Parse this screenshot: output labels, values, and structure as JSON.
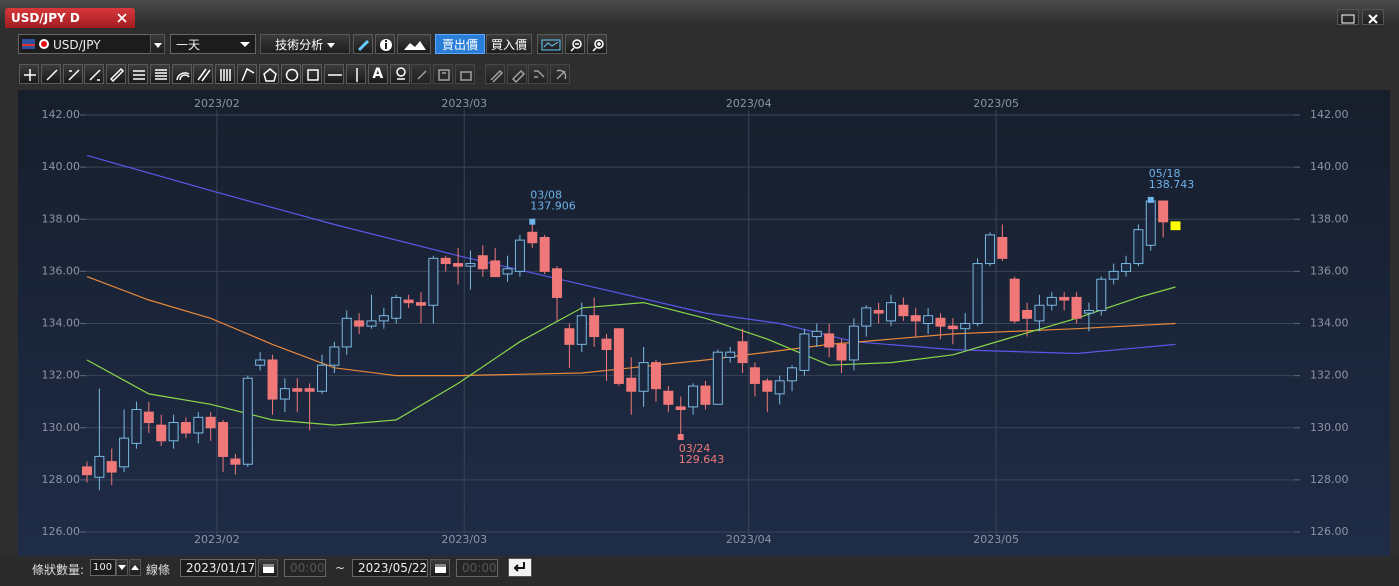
{
  "window": {
    "tab_title": "USD/JPY D"
  },
  "toolbar": {
    "symbol": "USD/JPY",
    "period": "一天",
    "indicator_menu": "技術分析",
    "sell_price": "賣出價",
    "buy_price": "買入價",
    "text_tool": "A"
  },
  "chart_data": {
    "type": "candlestick",
    "up_color": "#7ab8e0",
    "down_color": "#f07878",
    "current_color": "#ffff00",
    "grid": true,
    "open": [
      128.5,
      128.1,
      128.7,
      128.5,
      129.4,
      130.6,
      130.1,
      129.5,
      130.2,
      129.8,
      130.4,
      130.2,
      128.8,
      128.6,
      132.4,
      132.6,
      131.1,
      131.5,
      131.5,
      131.4,
      132.4,
      133.1,
      134.1,
      133.9,
      134.1,
      134.2,
      134.9,
      134.8,
      134.7,
      136.5,
      136.3,
      136.2,
      136.6,
      136.4,
      135.9,
      136.0,
      137.5,
      137.3,
      136.1,
      133.8,
      133.2,
      134.3,
      133.4,
      133.8,
      131.9,
      131.4,
      132.5,
      131.4,
      130.8,
      130.8,
      131.6,
      130.9,
      132.7,
      133.3,
      132.3,
      131.8,
      131.3,
      131.8,
      132.2,
      133.5,
      133.6,
      133.2,
      132.6,
      133.9,
      134.5,
      134.1,
      134.7,
      134.3,
      134.0,
      134.2,
      133.9,
      133.8,
      134.0,
      136.3,
      137.3,
      135.7,
      134.5,
      134.1,
      134.7,
      135.0,
      135.0,
      134.4,
      134.5,
      135.7,
      136.0,
      136.3,
      137.0,
      138.7,
      137.9
    ],
    "high": [
      128.7,
      131.5,
      129.2,
      130.7,
      131.0,
      131.0,
      130.5,
      130.5,
      130.4,
      130.6,
      130.6,
      130.3,
      129.0,
      132.0,
      132.9,
      132.8,
      131.9,
      131.9,
      131.7,
      132.8,
      133.3,
      134.5,
      134.4,
      135.1,
      134.6,
      135.1,
      135.1,
      135.2,
      136.6,
      136.6,
      136.9,
      136.8,
      137.0,
      136.9,
      136.6,
      137.4,
      137.906,
      137.4,
      136.2,
      134.0,
      134.8,
      135.0,
      133.6,
      133.8,
      132.7,
      133.1,
      132.6,
      131.6,
      131.2,
      131.7,
      131.8,
      133.0,
      133.1,
      133.8,
      132.5,
      131.9,
      132.0,
      132.4,
      133.8,
      134.0,
      134.0,
      133.4,
      134.2,
      134.7,
      134.8,
      135.1,
      135.0,
      134.6,
      134.6,
      134.4,
      134.2,
      134.4,
      136.5,
      137.5,
      137.8,
      135.8,
      134.8,
      135.1,
      135.2,
      135.2,
      135.2,
      134.8,
      135.8,
      136.3,
      136.6,
      137.8,
      138.743,
      138.7,
      137.9
    ],
    "low": [
      127.9,
      127.6,
      127.8,
      128.3,
      129.2,
      129.8,
      129.3,
      129.2,
      129.6,
      129.4,
      129.5,
      128.3,
      128.2,
      128.5,
      132.2,
      130.5,
      130.6,
      130.6,
      129.9,
      131.3,
      132.1,
      132.8,
      133.6,
      133.8,
      133.8,
      134.0,
      134.6,
      134.0,
      134.0,
      136.0,
      135.5,
      135.3,
      135.8,
      135.8,
      135.6,
      135.8,
      136.9,
      135.9,
      134.1,
      132.3,
      132.9,
      133.1,
      131.8,
      131.6,
      130.5,
      130.8,
      131.0,
      130.6,
      129.643,
      130.5,
      130.7,
      130.9,
      132.5,
      132.1,
      131.2,
      130.6,
      130.9,
      131.4,
      132.0,
      133.1,
      132.7,
      132.1,
      132.2,
      133.5,
      134.0,
      133.9,
      134.1,
      133.5,
      133.6,
      133.4,
      133.2,
      133.0,
      133.9,
      136.2,
      136.4,
      134.0,
      133.5,
      133.7,
      134.5,
      134.5,
      134.0,
      133.7,
      134.3,
      135.5,
      135.8,
      136.2,
      136.8,
      137.3,
      137.6
    ],
    "close": [
      128.2,
      128.9,
      128.3,
      129.6,
      130.7,
      130.2,
      129.5,
      130.2,
      129.8,
      130.4,
      130.0,
      128.9,
      128.6,
      131.9,
      132.6,
      131.1,
      131.5,
      131.4,
      131.4,
      132.4,
      133.1,
      134.2,
      133.9,
      134.1,
      134.3,
      135.0,
      134.8,
      134.7,
      136.5,
      136.3,
      136.2,
      136.3,
      136.1,
      135.8,
      136.1,
      137.2,
      137.1,
      136.0,
      135.0,
      133.2,
      134.3,
      133.5,
      133.0,
      131.7,
      131.4,
      132.5,
      131.5,
      130.9,
      130.7,
      131.6,
      130.9,
      132.9,
      132.9,
      132.5,
      131.7,
      131.4,
      131.8,
      132.3,
      133.6,
      133.7,
      133.1,
      132.6,
      133.9,
      134.6,
      134.4,
      134.8,
      134.3,
      134.1,
      134.3,
      133.9,
      133.8,
      134.0,
      136.3,
      137.4,
      136.5,
      134.1,
      134.2,
      134.7,
      135.0,
      134.9,
      134.2,
      134.5,
      135.7,
      136.0,
      136.3,
      137.6,
      138.7,
      137.9,
      137.6
    ],
    "series": [
      {
        "color": "#5858e8",
        "x": [
          0,
          10,
          20,
          30,
          40,
          50,
          56,
          62,
          70,
          80,
          88
        ],
        "values": [
          140.45,
          139.1,
          137.8,
          136.6,
          135.5,
          134.4,
          134.0,
          133.3,
          133.0,
          132.85,
          133.2
        ]
      },
      {
        "color": "#e8883a",
        "x": [
          0,
          5,
          10,
          15,
          20,
          25,
          30,
          40,
          50,
          60,
          70,
          80,
          88
        ],
        "values": [
          135.8,
          134.9,
          134.2,
          133.2,
          132.3,
          132.0,
          132.0,
          132.1,
          132.6,
          133.2,
          133.6,
          133.8,
          134.0
        ]
      },
      {
        "color": "#8ad84a",
        "x": [
          0,
          5,
          10,
          15,
          20,
          25,
          30,
          35,
          40,
          45,
          50,
          55,
          60,
          65,
          70,
          75,
          80,
          85,
          88
        ],
        "values": [
          132.6,
          131.3,
          130.9,
          130.3,
          130.1,
          130.3,
          131.7,
          133.3,
          134.6,
          134.8,
          134.2,
          133.4,
          132.4,
          132.5,
          132.8,
          133.5,
          134.2,
          135.0,
          135.4
        ]
      }
    ],
    "annotations": [
      {
        "x": 36,
        "date": "03/08",
        "value": 137.906,
        "color": "#6cb4ea"
      },
      {
        "x": 48,
        "date": "03/24",
        "value": 129.643,
        "color": "#f07878"
      },
      {
        "x": 86,
        "date": "05/18",
        "value": 138.743,
        "color": "#6cb4ea"
      }
    ],
    "xlim": [
      -0.5,
      98
    ],
    "xticks": [
      {
        "value": 10.5,
        "label": "2023/02"
      },
      {
        "value": 30.5,
        "label": "2023/03"
      },
      {
        "value": 53.5,
        "label": "2023/04"
      },
      {
        "value": 73.5,
        "label": "2023/05"
      }
    ],
    "ylim": [
      126,
      142
    ],
    "yticks": [
      {
        "value": 126,
        "label": "126.00"
      },
      {
        "value": 128,
        "label": "128.00"
      },
      {
        "value": 130,
        "label": "130.00"
      },
      {
        "value": 132,
        "label": "132.00"
      },
      {
        "value": 134,
        "label": "134.00"
      },
      {
        "value": 136,
        "label": "136.00"
      },
      {
        "value": 138,
        "label": "138.00"
      },
      {
        "value": 140,
        "label": "140.00"
      },
      {
        "value": 142,
        "label": "142.00"
      }
    ]
  },
  "footer": {
    "bar_count_label": "條狀數量:",
    "bar_count": "100",
    "line_label": "線條",
    "start_date": "2023/01/17",
    "start_time": "00:00",
    "separator": "~",
    "end_date": "2023/05/22",
    "end_time": "00:00"
  }
}
